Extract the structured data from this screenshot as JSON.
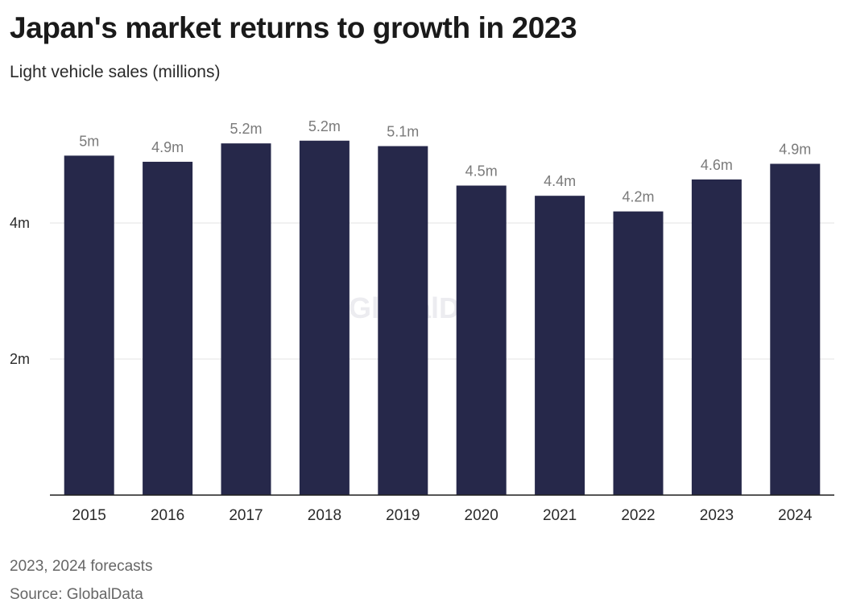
{
  "header": {
    "title": "Japan's market returns to growth in 2023",
    "subtitle": "Light vehicle sales (millions)"
  },
  "footer": {
    "note": "2023, 2024 forecasts",
    "source": "Source: GlobalData"
  },
  "watermark": "GlobalData",
  "colors": {
    "bar": "#26284a",
    "gridline": "#e3e3e3",
    "baseline": "#1f1f1f"
  },
  "chart_data": {
    "type": "bar",
    "title": "Japan's market returns to growth in 2023",
    "ylabel": "Light vehicle sales (millions)",
    "categories": [
      "2015",
      "2016",
      "2017",
      "2018",
      "2019",
      "2020",
      "2021",
      "2022",
      "2023",
      "2024"
    ],
    "values": [
      4.99,
      4.9,
      5.17,
      5.21,
      5.13,
      4.55,
      4.4,
      4.17,
      4.64,
      4.87
    ],
    "data_labels": [
      "5m",
      "4.9m",
      "5.2m",
      "5.2m",
      "5.1m",
      "4.5m",
      "4.4m",
      "4.2m",
      "4.6m",
      "4.9m"
    ],
    "ylim": [
      0,
      6
    ],
    "yticks": [
      2,
      4
    ],
    "ytick_labels": [
      "2m",
      "4m"
    ],
    "grid": true
  }
}
